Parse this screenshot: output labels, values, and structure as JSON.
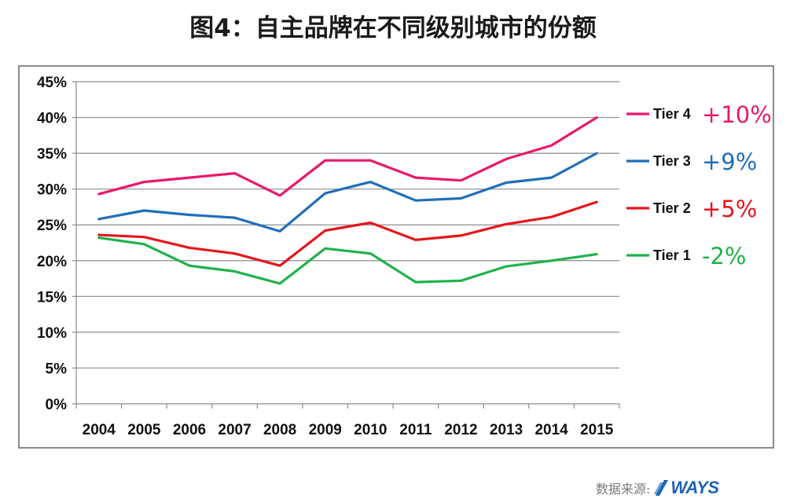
{
  "chart_data": {
    "type": "line",
    "title": "图4：自主品牌在不同级别城市的份额",
    "categories": [
      "2004",
      "2005",
      "2006",
      "2007",
      "2008",
      "2009",
      "2010",
      "2011",
      "2012",
      "2013",
      "2014",
      "2015"
    ],
    "y_ticks": [
      "0%",
      "5%",
      "10%",
      "15%",
      "20%",
      "25%",
      "30%",
      "35%",
      "40%",
      "45%"
    ],
    "ylim": [
      0,
      45
    ],
    "grid": true,
    "legend_position": "right",
    "series": [
      {
        "name": "Tier 4",
        "change": "+10%",
        "color": "#e8196b",
        "values": [
          29.3,
          31.0,
          31.6,
          32.2,
          29.1,
          34.0,
          34.0,
          31.6,
          31.2,
          34.2,
          36.1,
          40.0
        ]
      },
      {
        "name": "Tier 3",
        "change": "+9%",
        "color": "#1f6fb8",
        "values": [
          25.8,
          27.0,
          26.4,
          26.0,
          24.1,
          29.4,
          31.0,
          28.4,
          28.7,
          30.9,
          31.6,
          35.0
        ]
      },
      {
        "name": "Tier 2",
        "change": "+5%",
        "color": "#e3171d",
        "values": [
          23.6,
          23.3,
          21.8,
          21.0,
          19.3,
          24.2,
          25.3,
          22.9,
          23.5,
          25.1,
          26.1,
          28.2
        ]
      },
      {
        "name": "Tier 1",
        "change": "-2%",
        "color": "#1fb24a",
        "values": [
          23.2,
          22.3,
          19.3,
          18.5,
          16.8,
          21.7,
          21.0,
          17.0,
          17.2,
          19.2,
          20.0,
          20.9
        ]
      }
    ]
  },
  "source": {
    "label": "数据来源:",
    "logo_text": "WAYS"
  }
}
